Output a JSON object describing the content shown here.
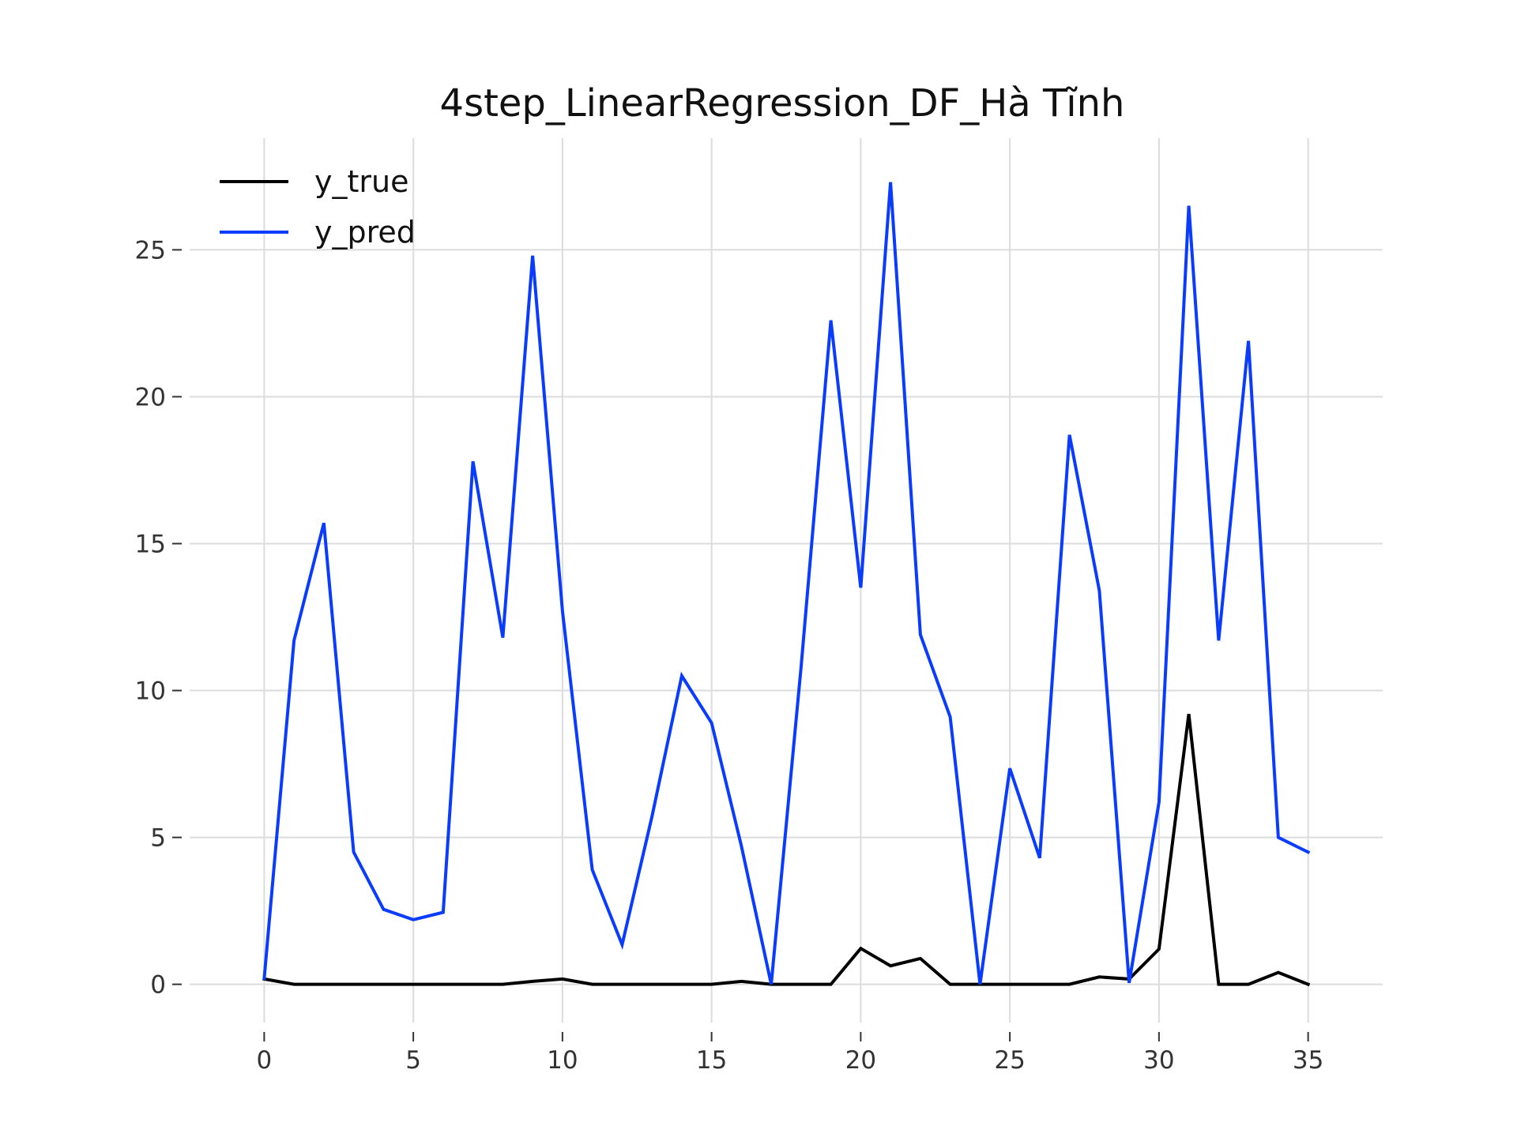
{
  "chart_data": {
    "type": "line",
    "title": "4step_LinearRegression_DF_Hà Tĩnh",
    "xlabel": "",
    "ylabel": "",
    "xlim": [
      -2.5,
      37.5
    ],
    "ylim": [
      -1.3,
      28.8
    ],
    "xticks": [
      0,
      5,
      10,
      15,
      20,
      25,
      30,
      35
    ],
    "yticks": [
      0,
      5,
      10,
      15,
      20,
      25
    ],
    "grid": true,
    "legend_position": "top-left",
    "x": [
      0,
      1,
      2,
      3,
      4,
      5,
      6,
      7,
      8,
      9,
      10,
      11,
      12,
      13,
      14,
      15,
      16,
      17,
      18,
      19,
      20,
      21,
      22,
      23,
      24,
      25,
      26,
      27,
      28,
      29,
      30,
      31,
      32,
      33,
      34,
      35
    ],
    "series": [
      {
        "name": "y_true",
        "color": "#000000",
        "values": [
          0.18,
          0,
          0,
          0,
          0,
          0,
          0,
          0,
          0,
          0.1,
          0.18,
          0,
          0,
          0,
          0,
          0,
          0.1,
          0,
          0,
          0,
          1.22,
          0.63,
          0.88,
          0,
          0,
          0,
          0,
          0,
          0.25,
          0.18,
          1.2,
          9.2,
          0,
          0,
          0.4,
          0
        ]
      },
      {
        "name": "y_pred",
        "color": "#0a3cff",
        "values": [
          0.2,
          11.7,
          15.7,
          4.5,
          2.55,
          2.2,
          2.45,
          17.8,
          11.8,
          24.8,
          12.7,
          3.9,
          1.35,
          5.7,
          10.5,
          8.9,
          4.7,
          0,
          10.8,
          22.6,
          13.5,
          27.3,
          11.9,
          9.1,
          0,
          7.35,
          4.3,
          18.7,
          13.4,
          0.05,
          6.2,
          26.5,
          11.7,
          21.9,
          5.0,
          4.5
        ]
      }
    ]
  }
}
